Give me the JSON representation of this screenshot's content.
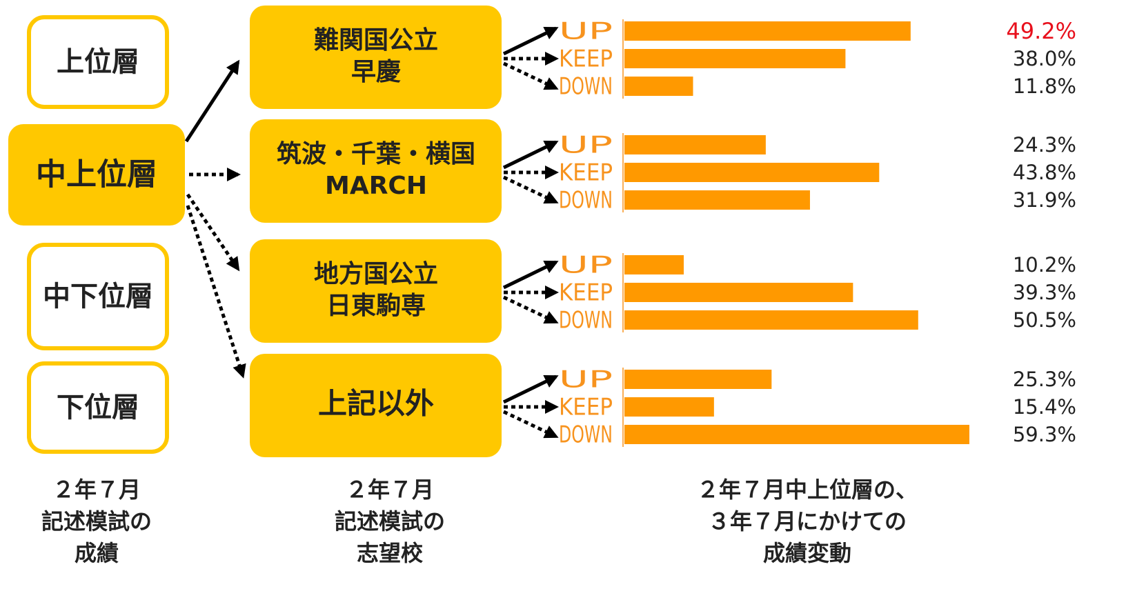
{
  "tiers": [
    "上位層",
    "中上位層",
    "中下位層",
    "下位層"
  ],
  "selected_tier": 1,
  "outcomes": [
    "UP",
    "KEEP",
    "DOWN"
  ],
  "groups": [
    {
      "label": [
        "難関国公立",
        "早慶"
      ],
      "values": [
        49.2,
        38.0,
        11.8
      ],
      "value_labels": [
        "49.2%",
        "38.0%",
        "11.8%"
      ]
    },
    {
      "label": [
        "筑波・千葉・横国",
        "MARCH"
      ],
      "values": [
        24.3,
        43.8,
        31.9
      ],
      "value_labels": [
        "24.3%",
        "43.8%",
        "31.9%"
      ]
    },
    {
      "label": [
        "地方国公立",
        "日東駒専"
      ],
      "values": [
        10.2,
        39.3,
        50.5
      ],
      "value_labels": [
        "10.2%",
        "39.3%",
        "50.5%"
      ]
    },
    {
      "label": [
        "上記以外"
      ],
      "values": [
        25.3,
        15.4,
        59.3
      ],
      "value_labels": [
        "25.3%",
        "15.4%",
        "59.3%"
      ]
    }
  ],
  "bar_color": "#ff9900",
  "outcome_color": "#f7931e",
  "box_color": "#ffc800",
  "highlight": {
    "group": 0,
    "index": 0,
    "color": "#e8101c"
  },
  "captions": [
    [
      "２年７月",
      "記述模試の",
      "成績"
    ],
    [
      "２年７月",
      "記述模試の",
      "志望校"
    ],
    [
      "２年７月中上位層の、",
      "３年７月にかけての",
      "成績変動"
    ]
  ]
}
